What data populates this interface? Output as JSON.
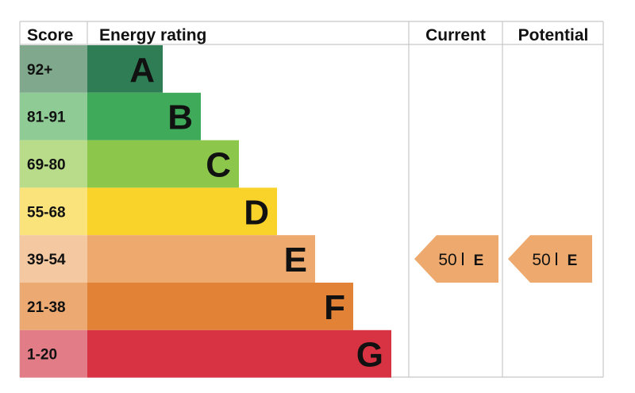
{
  "header": {
    "score": "Score",
    "energy_rating": "Energy rating",
    "current": "Current",
    "potential": "Potential"
  },
  "chart_data": {
    "type": "bar",
    "categories": [
      "A",
      "B",
      "C",
      "D",
      "E",
      "F",
      "G"
    ],
    "score_ranges": [
      "92+",
      "81-91",
      "69-80",
      "55-68",
      "39-54",
      "21-38",
      "1-20"
    ],
    "colors": {
      "A": "#2e7d55",
      "B": "#3faa5a",
      "C": "#8cc74b",
      "D": "#fad32a",
      "E": "#eeaa6e",
      "F": "#e28236",
      "G": "#d73342"
    },
    "score_tint_colors": {
      "A": "#7fa88c",
      "B": "#8fcb95",
      "C": "#b8dc8a",
      "D": "#fbe37c",
      "E": "#f4c9a2",
      "F": "#ecaa72",
      "G": "#e27d88"
    },
    "current": {
      "score": "50",
      "band": "E"
    },
    "potential": {
      "score": "50",
      "band": "E"
    },
    "arrow_color": "#eeaa6e",
    "grid_line_color": "#c8c8c8"
  }
}
